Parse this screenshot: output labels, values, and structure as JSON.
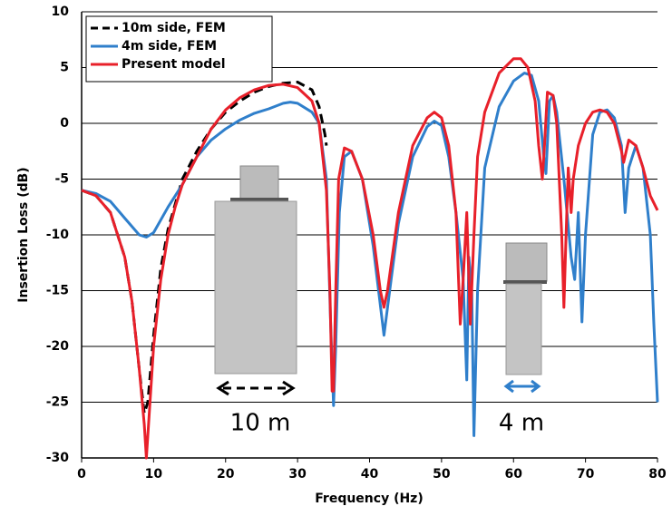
{
  "chart_data": {
    "type": "line",
    "xlabel": "Frequency (Hz)",
    "ylabel": "Insertion Loss (dB)",
    "xlim": [
      0,
      80
    ],
    "xticks": [
      0,
      10,
      20,
      30,
      40,
      50,
      60,
      70,
      80
    ],
    "ylim": [
      -30,
      10
    ],
    "yticks": [
      -30,
      -25,
      -20,
      -15,
      -10,
      -5,
      0,
      5,
      10
    ],
    "grid": true,
    "legend": "upper left",
    "annotations": [
      "10 m",
      "4 m"
    ],
    "series": [
      {
        "name": "10m side, FEM",
        "color": "#000000",
        "dashed": true,
        "x": [
          0,
          2,
          4,
          6,
          7,
          8,
          8.7,
          9.2,
          10,
          11,
          12,
          14,
          16,
          18,
          20,
          22,
          24,
          26,
          28,
          30,
          32,
          33,
          33.8,
          34
        ],
        "values": [
          -6,
          -6.5,
          -8,
          -12,
          -16,
          -22,
          -26,
          -25,
          -19,
          -13,
          -9.5,
          -5,
          -2.5,
          -0.5,
          1,
          2,
          2.8,
          3.3,
          3.6,
          3.7,
          3,
          1.5,
          -1,
          -2
        ]
      },
      {
        "name": "4m side, FEM",
        "color": "#2f7fcb",
        "dashed": false,
        "x": [
          0,
          2,
          4,
          6,
          8,
          9,
          10,
          12,
          14,
          16,
          18,
          20,
          22,
          24,
          26,
          28,
          29,
          30,
          32,
          33,
          34,
          34.6,
          35,
          35.3,
          35.8,
          36.5,
          37.5,
          39,
          40.5,
          42,
          43,
          44,
          46,
          48,
          49,
          50,
          51,
          52,
          53,
          53.5,
          53.8,
          54.2,
          54.5,
          55,
          56,
          58,
          60,
          61.5,
          62.5,
          63.5,
          64.2,
          64.5,
          65,
          65.5,
          66,
          67,
          68,
          68.5,
          69,
          69.5,
          70,
          71,
          72,
          73,
          74,
          75,
          75.5,
          76,
          76.5,
          77,
          78,
          79,
          79.5,
          80
        ],
        "values": [
          -6,
          -6.3,
          -7,
          -8.5,
          -10,
          -10.2,
          -9.8,
          -7.5,
          -5.5,
          -3,
          -1.5,
          -0.5,
          0.3,
          0.9,
          1.3,
          1.8,
          1.9,
          1.8,
          1,
          0,
          -5,
          -18,
          -25.3,
          -20,
          -8,
          -3,
          -2.5,
          -5,
          -11,
          -19,
          -14,
          -9,
          -3,
          -0.3,
          0.2,
          -0.2,
          -3,
          -8,
          -14,
          -23,
          -12,
          -15,
          -28,
          -15,
          -4,
          1.5,
          3.8,
          4.5,
          4.3,
          2,
          -3,
          -4.5,
          2,
          2.5,
          1,
          -5,
          -12,
          -14,
          -8,
          -17.8,
          -10,
          -1,
          1,
          1.2,
          0.5,
          -2,
          -8,
          -4,
          -3,
          -2,
          -4,
          -10,
          -18,
          -25
        ]
      },
      {
        "name": "Present model",
        "color": "#e8202a",
        "dashed": false,
        "x": [
          0,
          2,
          4,
          6,
          7,
          8,
          8.7,
          9,
          9.3,
          10,
          11,
          12,
          13,
          14,
          16,
          18,
          20,
          22,
          24,
          26,
          28,
          30,
          32,
          33,
          34,
          34.5,
          34.8,
          35,
          35.3,
          35.7,
          36.5,
          37.5,
          39,
          40.5,
          41.5,
          42,
          42.5,
          44,
          46,
          48,
          49,
          50,
          51,
          52,
          52.6,
          53,
          53.5,
          54,
          54.5,
          55,
          56,
          58,
          60,
          61,
          62,
          63,
          63.5,
          64,
          64.3,
          64.7,
          65.5,
          66,
          66.7,
          67,
          67.3,
          67.6,
          68,
          68.3,
          69,
          70,
          71,
          72,
          73,
          74,
          75,
          75.3,
          76,
          77,
          78,
          79,
          80
        ],
        "values": [
          -6,
          -6.5,
          -8,
          -12,
          -16,
          -22,
          -27,
          -30,
          -27,
          -20,
          -14,
          -10,
          -7.5,
          -5.5,
          -3,
          -0.5,
          1.2,
          2.3,
          3,
          3.4,
          3.5,
          3.2,
          2,
          0,
          -6,
          -15,
          -24,
          -24,
          -15,
          -5,
          -2.2,
          -2.5,
          -5,
          -10,
          -15,
          -16.5,
          -15,
          -8,
          -2,
          0.5,
          1,
          0.5,
          -2,
          -8,
          -18,
          -14,
          -8,
          -18,
          -10,
          -3,
          1,
          4.5,
          5.8,
          5.8,
          5,
          2,
          -2,
          -5,
          -2,
          2.8,
          2.5,
          0,
          -10,
          -16.5,
          -10,
          -4,
          -8,
          -5,
          -2,
          0,
          1,
          1.2,
          1,
          0,
          -2.5,
          -3.5,
          -1.5,
          -2,
          -4,
          -6.5,
          -7.8
        ]
      }
    ]
  }
}
